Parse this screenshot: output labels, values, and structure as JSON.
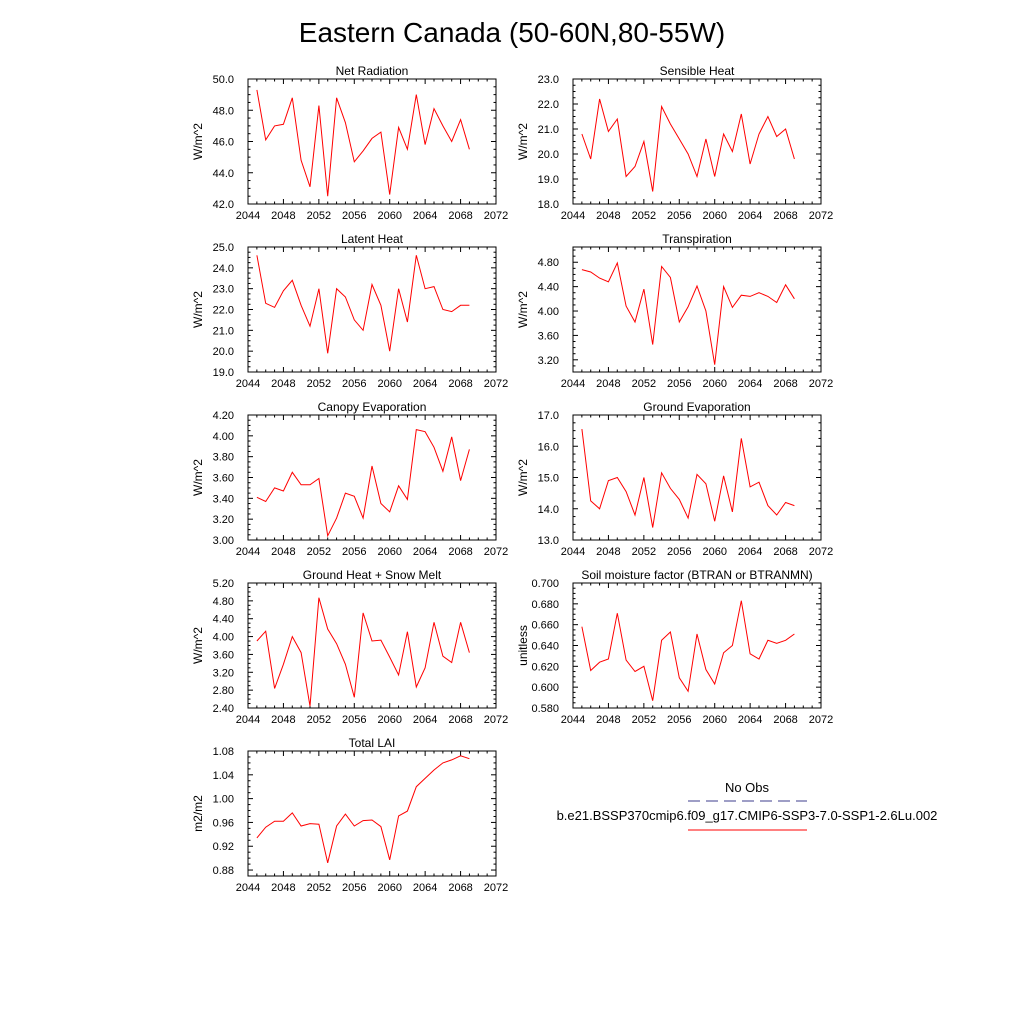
{
  "title": "Eastern Canada (50-60N,80-55W)",
  "legend": {
    "obs_label": "No Obs",
    "model_label": "b.e21.BSSP370cmip6.f09_g17.CMIP6-SSP3-7.0-SSP1-2.6Lu.002",
    "obs_color": "#3c3c8c",
    "model_color": "#ff0000"
  },
  "chart_data": [
    {
      "type": "line",
      "title": "Net Radiation",
      "ylabel": "W/m^2",
      "xlim": [
        2044,
        2072
      ],
      "ylim": [
        42.0,
        50.0
      ],
      "x_ticks": [
        2044,
        2048,
        2052,
        2056,
        2060,
        2064,
        2068,
        2072
      ],
      "y_ticks": [
        "42.0",
        "44.0",
        "46.0",
        "48.0",
        "50.0"
      ],
      "x": [
        2045,
        2046,
        2047,
        2048,
        2049,
        2050,
        2051,
        2052,
        2053,
        2054,
        2055,
        2056,
        2057,
        2058,
        2059,
        2060,
        2061,
        2062,
        2063,
        2064,
        2065,
        2066,
        2067,
        2068,
        2069
      ],
      "series": [
        {
          "values": [
            49.3,
            46.1,
            47.0,
            47.1,
            48.8,
            44.8,
            43.1,
            48.3,
            42.5,
            48.8,
            47.2,
            44.7,
            45.4,
            46.2,
            46.6,
            42.6,
            46.9,
            45.5,
            49.0,
            45.8,
            48.1,
            47.0,
            46.0,
            47.4,
            45.5
          ]
        }
      ]
    },
    {
      "type": "line",
      "title": "Sensible Heat",
      "ylabel": "W/m^2",
      "xlim": [
        2044,
        2072
      ],
      "ylim": [
        18.0,
        23.0
      ],
      "x_ticks": [
        2044,
        2048,
        2052,
        2056,
        2060,
        2064,
        2068,
        2072
      ],
      "y_ticks": [
        "18.0",
        "19.0",
        "20.0",
        "21.0",
        "22.0",
        "23.0"
      ],
      "x": [
        2045,
        2046,
        2047,
        2048,
        2049,
        2050,
        2051,
        2052,
        2053,
        2054,
        2055,
        2056,
        2057,
        2058,
        2059,
        2060,
        2061,
        2062,
        2063,
        2064,
        2065,
        2066,
        2067,
        2068,
        2069
      ],
      "series": [
        {
          "values": [
            20.8,
            19.8,
            22.2,
            20.9,
            21.4,
            19.1,
            19.5,
            20.5,
            18.5,
            21.9,
            21.2,
            20.6,
            20.0,
            19.1,
            20.6,
            19.1,
            20.8,
            20.1,
            21.6,
            19.6,
            20.8,
            21.5,
            20.7,
            21.0,
            19.8
          ]
        }
      ]
    },
    {
      "type": "line",
      "title": "Latent Heat",
      "ylabel": "W/m^2",
      "xlim": [
        2044,
        2072
      ],
      "ylim": [
        19.0,
        25.0
      ],
      "x_ticks": [
        2044,
        2048,
        2052,
        2056,
        2060,
        2064,
        2068,
        2072
      ],
      "y_ticks": [
        "19.0",
        "20.0",
        "21.0",
        "22.0",
        "23.0",
        "24.0",
        "25.0"
      ],
      "x": [
        2045,
        2046,
        2047,
        2048,
        2049,
        2050,
        2051,
        2052,
        2053,
        2054,
        2055,
        2056,
        2057,
        2058,
        2059,
        2060,
        2061,
        2062,
        2063,
        2064,
        2065,
        2066,
        2067,
        2068,
        2069
      ],
      "series": [
        {
          "values": [
            24.6,
            22.3,
            22.1,
            22.9,
            23.4,
            22.2,
            21.2,
            23.0,
            19.9,
            23.0,
            22.6,
            21.5,
            21.0,
            23.2,
            22.2,
            20.0,
            23.0,
            21.4,
            24.6,
            23.0,
            23.1,
            22.0,
            21.9,
            22.2,
            22.2
          ]
        }
      ]
    },
    {
      "type": "line",
      "title": "Transpiration",
      "ylabel": "W/m^2",
      "xlim": [
        2044,
        2072
      ],
      "ylim": [
        3.0,
        5.05
      ],
      "x_ticks": [
        2044,
        2048,
        2052,
        2056,
        2060,
        2064,
        2068,
        2072
      ],
      "y_ticks": [
        "3.20",
        "3.60",
        "4.00",
        "4.40",
        "4.80"
      ],
      "x": [
        2045,
        2046,
        2047,
        2048,
        2049,
        2050,
        2051,
        2052,
        2053,
        2054,
        2055,
        2056,
        2057,
        2058,
        2059,
        2060,
        2061,
        2062,
        2063,
        2064,
        2065,
        2066,
        2067,
        2068,
        2069
      ],
      "series": [
        {
          "values": [
            4.68,
            4.64,
            4.54,
            4.48,
            4.79,
            4.08,
            3.82,
            4.36,
            3.45,
            4.73,
            4.55,
            3.82,
            4.07,
            4.41,
            4.0,
            3.12,
            4.4,
            4.06,
            4.26,
            4.24,
            4.3,
            4.24,
            4.14,
            4.43,
            4.2
          ]
        }
      ]
    },
    {
      "type": "line",
      "title": "Canopy Evaporation",
      "ylabel": "W/m^2",
      "xlim": [
        2044,
        2072
      ],
      "ylim": [
        3.0,
        4.2
      ],
      "x_ticks": [
        2044,
        2048,
        2052,
        2056,
        2060,
        2064,
        2068,
        2072
      ],
      "y_ticks": [
        "3.00",
        "3.20",
        "3.40",
        "3.60",
        "3.80",
        "4.00",
        "4.20"
      ],
      "x": [
        2045,
        2046,
        2047,
        2048,
        2049,
        2050,
        2051,
        2052,
        2053,
        2054,
        2055,
        2056,
        2057,
        2058,
        2059,
        2060,
        2061,
        2062,
        2063,
        2064,
        2065,
        2066,
        2067,
        2068,
        2069
      ],
      "series": [
        {
          "values": [
            3.41,
            3.37,
            3.5,
            3.47,
            3.65,
            3.53,
            3.53,
            3.59,
            3.04,
            3.21,
            3.45,
            3.42,
            3.21,
            3.71,
            3.35,
            3.27,
            3.52,
            3.39,
            4.06,
            4.04,
            3.89,
            3.66,
            3.99,
            3.57,
            3.87
          ]
        }
      ]
    },
    {
      "type": "line",
      "title": "Ground Evaporation",
      "ylabel": "W/m^2",
      "xlim": [
        2044,
        2072
      ],
      "ylim": [
        13.0,
        17.0
      ],
      "x_ticks": [
        2044,
        2048,
        2052,
        2056,
        2060,
        2064,
        2068,
        2072
      ],
      "y_ticks": [
        "13.0",
        "14.0",
        "15.0",
        "16.0",
        "17.0"
      ],
      "x": [
        2045,
        2046,
        2047,
        2048,
        2049,
        2050,
        2051,
        2052,
        2053,
        2054,
        2055,
        2056,
        2057,
        2058,
        2059,
        2060,
        2061,
        2062,
        2063,
        2064,
        2065,
        2066,
        2067,
        2068,
        2069
      ],
      "series": [
        {
          "values": [
            16.55,
            14.25,
            14.0,
            14.9,
            15.0,
            14.55,
            13.8,
            15.0,
            13.4,
            15.15,
            14.65,
            14.3,
            13.7,
            15.1,
            14.8,
            13.6,
            15.05,
            13.9,
            16.25,
            14.7,
            14.85,
            14.1,
            13.8,
            14.2,
            14.1
          ]
        }
      ]
    },
    {
      "type": "line",
      "title": "Ground Heat + Snow Melt",
      "ylabel": "W/m^2",
      "xlim": [
        2044,
        2072
      ],
      "ylim": [
        2.4,
        5.2
      ],
      "x_ticks": [
        2044,
        2048,
        2052,
        2056,
        2060,
        2064,
        2068,
        2072
      ],
      "y_ticks": [
        "2.40",
        "2.80",
        "3.20",
        "3.60",
        "4.00",
        "4.40",
        "4.80",
        "5.20"
      ],
      "x": [
        2045,
        2046,
        2047,
        2048,
        2049,
        2050,
        2051,
        2052,
        2053,
        2054,
        2055,
        2056,
        2057,
        2058,
        2059,
        2060,
        2061,
        2062,
        2063,
        2064,
        2065,
        2066,
        2067,
        2068,
        2069
      ],
      "series": [
        {
          "values": [
            3.9,
            4.12,
            2.84,
            3.38,
            4.0,
            3.64,
            2.44,
            4.87,
            4.17,
            3.84,
            3.38,
            2.64,
            4.53,
            3.9,
            3.92,
            3.54,
            3.14,
            4.11,
            2.87,
            3.3,
            4.32,
            3.56,
            3.42,
            4.32,
            3.64
          ]
        }
      ]
    },
    {
      "type": "line",
      "title": "Soil moisture factor (BTRAN or BTRANMN)",
      "ylabel": "unitless",
      "xlim": [
        2044,
        2072
      ],
      "ylim": [
        0.58,
        0.7
      ],
      "x_ticks": [
        2044,
        2048,
        2052,
        2056,
        2060,
        2064,
        2068,
        2072
      ],
      "y_ticks": [
        "0.580",
        "0.600",
        "0.620",
        "0.640",
        "0.660",
        "0.680",
        "0.700"
      ],
      "x": [
        2045,
        2046,
        2047,
        2048,
        2049,
        2050,
        2051,
        2052,
        2053,
        2054,
        2055,
        2056,
        2057,
        2058,
        2059,
        2060,
        2061,
        2062,
        2063,
        2064,
        2065,
        2066,
        2067,
        2068,
        2069
      ],
      "series": [
        {
          "values": [
            0.658,
            0.616,
            0.624,
            0.627,
            0.671,
            0.626,
            0.615,
            0.62,
            0.587,
            0.645,
            0.653,
            0.609,
            0.596,
            0.651,
            0.617,
            0.603,
            0.633,
            0.64,
            0.683,
            0.632,
            0.627,
            0.645,
            0.642,
            0.645,
            0.651
          ]
        }
      ]
    },
    {
      "type": "line",
      "title": "Total LAI",
      "ylabel": "m2/m2",
      "xlim": [
        2044,
        2072
      ],
      "ylim": [
        0.87,
        1.08
      ],
      "x_ticks": [
        2044,
        2048,
        2052,
        2056,
        2060,
        2064,
        2068,
        2072
      ],
      "y_ticks": [
        "0.88",
        "0.92",
        "0.96",
        "1.00",
        "1.04",
        "1.08"
      ],
      "x": [
        2045,
        2046,
        2047,
        2048,
        2049,
        2050,
        2051,
        2052,
        2053,
        2054,
        2055,
        2056,
        2057,
        2058,
        2059,
        2060,
        2061,
        2062,
        2063,
        2064,
        2065,
        2066,
        2067,
        2068,
        2069
      ],
      "series": [
        {
          "values": [
            0.934,
            0.952,
            0.962,
            0.962,
            0.976,
            0.954,
            0.958,
            0.957,
            0.892,
            0.954,
            0.974,
            0.954,
            0.963,
            0.964,
            0.953,
            0.897,
            0.971,
            0.979,
            1.02,
            1.034,
            1.048,
            1.06,
            1.065,
            1.072,
            1.067
          ]
        }
      ]
    }
  ]
}
